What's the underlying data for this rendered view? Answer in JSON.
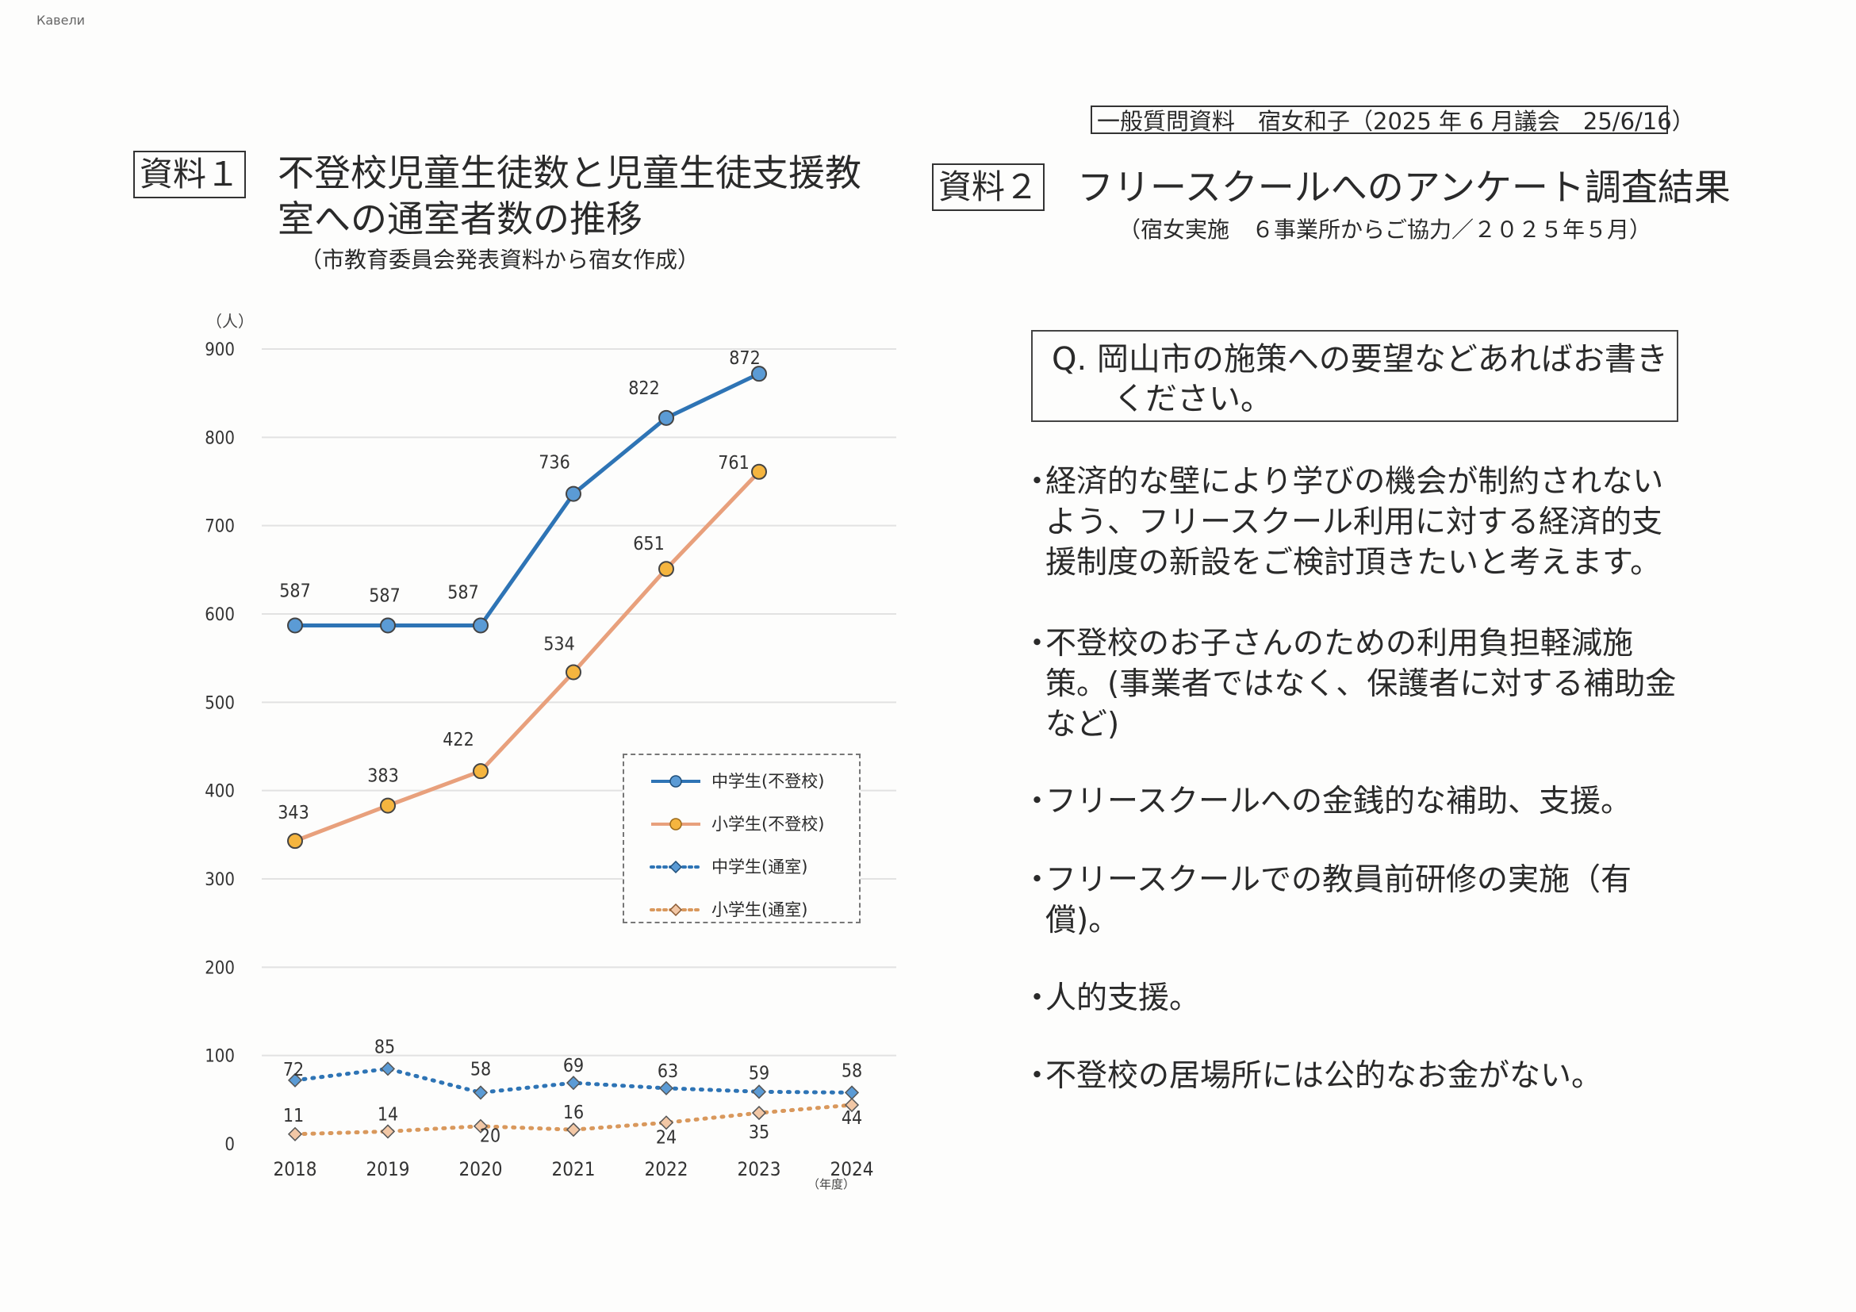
{
  "corner_mark": "Кавели",
  "header_note": "一般質問資料　宿女和子（2025 年 6 月議会　25/6/16）",
  "section1": {
    "tag": "資料１",
    "title_line1": "不登校児童生徒数と児童生徒支援教",
    "title_line2": "室への通室者数の推移",
    "source": "（市教育委員会発表資料から宿女作成）"
  },
  "section2": {
    "tag": "資料２",
    "title": "フリースクールへのアンケート調査結果",
    "source": "（宿女実施　６事業所からご協力／２０２５年５月）",
    "question_line1": "Q. 岡山市の施策への要望などあればお書き",
    "question_line2": "ください。",
    "answers": [
      {
        "bullet": "・",
        "text": "経済的な壁により学びの機会が制約されない\nよう、フリースクール利用に対する経済的支\n援制度の新設をご検討頂きたいと考えます。"
      },
      {
        "bullet": "・",
        "text": "不登校のお子さんのための利用負担軽減施\n策。(事業者ではなく、保護者に対する補助金\nなど)"
      },
      {
        "bullet": "・",
        "text": "フリースクールへの金銭的な補助、支援。"
      },
      {
        "bullet": "・",
        "text": "フリースクールでの教員前研修の実施（有\n償)。"
      },
      {
        "bullet": "・",
        "text": "人的支援。"
      },
      {
        "bullet": "・",
        "text": "不登校の居場所には公的なお金がない。"
      }
    ]
  },
  "chart_data": {
    "type": "line",
    "title": "",
    "ylabel": "（人）",
    "xlabel": "（年度）",
    "ylim": [
      0,
      900
    ],
    "yticks": [
      0,
      100,
      200,
      300,
      400,
      500,
      600,
      700,
      800,
      900
    ],
    "x": [
      "2018",
      "2019",
      "2020",
      "2021",
      "2022",
      "2023",
      "2024"
    ],
    "grid": true,
    "legend_position": "right-middle",
    "series": [
      {
        "name": "中学生(不登校)",
        "values": [
          587,
          587,
          587,
          736,
          822,
          872,
          null
        ],
        "color": "#2e74b5",
        "style": "solid",
        "marker": "circle",
        "marker_color": "#5b9bd5"
      },
      {
        "name": "小学生(不登校)",
        "values": [
          343,
          383,
          422,
          534,
          651,
          761,
          null
        ],
        "color": "#e8a07c",
        "style": "solid",
        "marker": "circle",
        "marker_color": "#f5b53f"
      },
      {
        "name": "中学生(通室)",
        "values": [
          72,
          85,
          58,
          69,
          63,
          59,
          58
        ],
        "color": "#2e74b5",
        "style": "dotted",
        "marker": "diamond",
        "marker_color": "#5b9bd5"
      },
      {
        "name": "小学生(通室)",
        "values": [
          11,
          14,
          20,
          16,
          24,
          35,
          44
        ],
        "color": "#d9985c",
        "style": "dotted",
        "marker": "diamond",
        "marker_color": "#f2c7a5"
      }
    ]
  }
}
